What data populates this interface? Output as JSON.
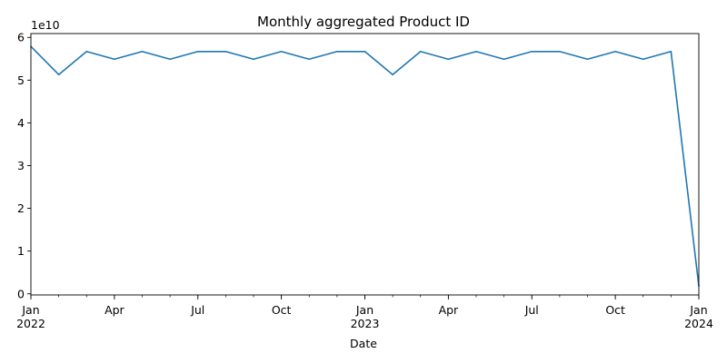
{
  "chart_data": {
    "type": "line",
    "title": "Monthly aggregated Product ID",
    "xlabel": "Date",
    "ylabel": "",
    "y_multiplier_label": "1e10",
    "y_multiplier": 10000000000,
    "ylim": [
      -0.0265,
      6.09
    ],
    "y_ticks": [
      0,
      1,
      2,
      3,
      4,
      5,
      6
    ],
    "grid": false,
    "legend": "none",
    "line_color": "#1f77b4",
    "x_major_ticks": [
      {
        "date": "2022-01",
        "label": "Jan",
        "sublabel": "2022"
      },
      {
        "date": "2022-04",
        "label": "Apr",
        "sublabel": ""
      },
      {
        "date": "2022-07",
        "label": "Jul",
        "sublabel": ""
      },
      {
        "date": "2022-10",
        "label": "Oct",
        "sublabel": ""
      },
      {
        "date": "2023-01",
        "label": "Jan",
        "sublabel": "2023"
      },
      {
        "date": "2023-04",
        "label": "Apr",
        "sublabel": ""
      },
      {
        "date": "2023-07",
        "label": "Jul",
        "sublabel": ""
      },
      {
        "date": "2023-10",
        "label": "Oct",
        "sublabel": ""
      },
      {
        "date": "2024-01",
        "label": "Jan",
        "sublabel": "2024"
      }
    ],
    "series": [
      {
        "x": [
          "2022-01",
          "2022-02",
          "2022-03",
          "2022-04",
          "2022-05",
          "2022-06",
          "2022-07",
          "2022-08",
          "2022-09",
          "2022-10",
          "2022-11",
          "2022-12",
          "2023-01",
          "2023-02",
          "2023-03",
          "2023-04",
          "2023-05",
          "2023-06",
          "2023-07",
          "2023-08",
          "2023-09",
          "2023-10",
          "2023-11",
          "2023-12",
          "2024-01"
        ],
        "values": [
          57900000000,
          51300000000,
          56700000000,
          54900000000,
          56700000000,
          54900000000,
          56700000000,
          56700000000,
          54900000000,
          56700000000,
          54900000000,
          56700000000,
          56700000000,
          51300000000,
          56700000000,
          54900000000,
          56700000000,
          54900000000,
          56700000000,
          56700000000,
          54900000000,
          56700000000,
          54900000000,
          56700000000,
          1800000000
        ]
      }
    ]
  }
}
